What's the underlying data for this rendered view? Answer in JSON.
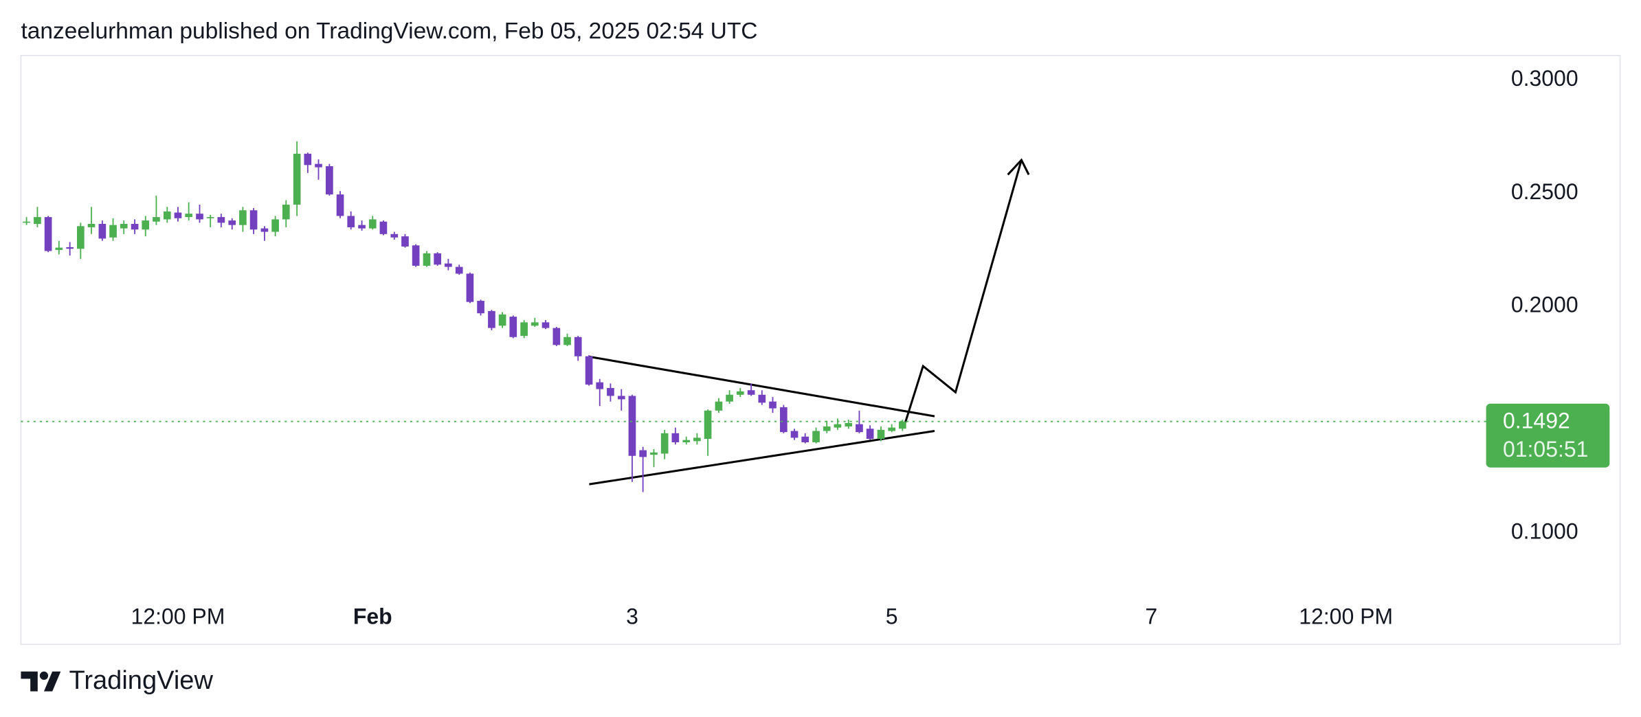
{
  "chart_data": {
    "type": "candlestick",
    "header": "tanzeelurhman published on TradingView.com, Feb 05, 2025 02:54 UTC",
    "brand": "TradingView",
    "up_color": "#4caf50",
    "down_color": "#7340c0",
    "x": [
      -1.667,
      -1.583,
      -1.5,
      -1.417,
      -1.333,
      -1.25,
      -1.167,
      -1.083,
      -1,
      -0.917,
      -0.833,
      -0.75,
      -0.667,
      -0.583,
      -0.5,
      -0.417,
      -0.333,
      -0.25,
      -0.167,
      -0.083,
      0,
      0.083,
      0.167,
      0.25,
      0.333,
      0.417,
      0.5,
      0.583,
      0.667,
      0.75,
      0.833,
      0.917,
      1,
      1.083,
      1.167,
      1.25,
      1.333,
      1.417,
      1.5,
      1.583,
      1.667,
      1.75,
      1.833,
      1.917,
      2,
      2.083,
      2.167,
      2.25,
      2.333,
      2.417,
      2.5,
      2.583,
      2.667,
      2.75,
      2.833,
      2.917,
      3,
      3.083,
      3.167,
      3.25,
      3.333,
      3.417,
      3.5,
      3.583,
      3.667,
      3.75,
      3.833,
      3.917,
      4,
      4.083,
      4.167,
      4.25,
      4.333,
      4.417,
      4.5,
      4.583,
      4.667,
      4.75,
      4.833,
      4.917,
      5,
      5.083
    ],
    "open": [
      0.237,
      0.2365,
      0.2395,
      0.225,
      0.2262,
      0.2255,
      0.235,
      0.2365,
      0.2305,
      0.2345,
      0.2365,
      0.234,
      0.2375,
      0.2385,
      0.2415,
      0.2395,
      0.241,
      0.239,
      0.2395,
      0.238,
      0.236,
      0.2425,
      0.2345,
      0.233,
      0.2385,
      0.245,
      0.2675,
      0.263,
      0.262,
      0.2495,
      0.24,
      0.236,
      0.2345,
      0.2375,
      0.232,
      0.231,
      0.227,
      0.218,
      0.2235,
      0.219,
      0.2175,
      0.2145,
      0.2025,
      0.198,
      0.1915,
      0.1955,
      0.187,
      0.1915,
      0.193,
      0.1905,
      0.183,
      0.1865,
      0.178,
      0.1665,
      0.164,
      0.1605,
      0.1605,
      0.1365,
      0.1345,
      0.135,
      0.144,
      0.14,
      0.1405,
      0.1415,
      0.154,
      0.158,
      0.161,
      0.163,
      0.161,
      0.158,
      0.1555,
      0.145,
      0.1425,
      0.14,
      0.145,
      0.1465,
      0.147,
      0.148,
      0.146,
      0.1415,
      0.145,
      0.146
    ],
    "high": [
      0.2395,
      0.244,
      0.24,
      0.229,
      0.2285,
      0.237,
      0.244,
      0.238,
      0.239,
      0.238,
      0.2385,
      0.24,
      0.249,
      0.244,
      0.244,
      0.246,
      0.245,
      0.2405,
      0.241,
      0.239,
      0.244,
      0.2435,
      0.2355,
      0.24,
      0.247,
      0.273,
      0.268,
      0.265,
      0.263,
      0.251,
      0.242,
      0.238,
      0.24,
      0.238,
      0.233,
      0.232,
      0.2275,
      0.2245,
      0.224,
      0.221,
      0.2185,
      0.215,
      0.203,
      0.1985,
      0.1975,
      0.196,
      0.194,
      0.195,
      0.194,
      0.191,
      0.188,
      0.187,
      0.1785,
      0.168,
      0.166,
      0.1635,
      0.161,
      0.138,
      0.137,
      0.1455,
      0.1465,
      0.1425,
      0.144,
      0.1545,
      0.1595,
      0.163,
      0.164,
      0.166,
      0.163,
      0.16,
      0.1565,
      0.146,
      0.144,
      0.1465,
      0.1495,
      0.1505,
      0.15,
      0.154,
      0.1475,
      0.147,
      0.148,
      0.15
    ],
    "low": [
      0.236,
      0.235,
      0.224,
      0.223,
      0.2225,
      0.221,
      0.232,
      0.229,
      0.229,
      0.232,
      0.232,
      0.231,
      0.236,
      0.237,
      0.2375,
      0.238,
      0.237,
      0.235,
      0.235,
      0.234,
      0.233,
      0.232,
      0.229,
      0.231,
      0.235,
      0.24,
      0.259,
      0.256,
      0.249,
      0.239,
      0.234,
      0.2335,
      0.234,
      0.2315,
      0.2295,
      0.226,
      0.2175,
      0.2175,
      0.218,
      0.216,
      0.214,
      0.2015,
      0.196,
      0.1895,
      0.1905,
      0.186,
      0.186,
      0.191,
      0.19,
      0.1825,
      0.1825,
      0.176,
      0.165,
      0.156,
      0.158,
      0.154,
      0.1225,
      0.118,
      0.129,
      0.1325,
      0.139,
      0.139,
      0.139,
      0.134,
      0.153,
      0.157,
      0.16,
      0.1605,
      0.1565,
      0.153,
      0.144,
      0.141,
      0.1395,
      0.1395,
      0.144,
      0.1455,
      0.146,
      0.144,
      0.141,
      0.1405,
      0.1445,
      0.145
    ],
    "close": [
      0.2375,
      0.2395,
      0.2245,
      0.226,
      0.2255,
      0.2355,
      0.2365,
      0.23,
      0.236,
      0.2365,
      0.234,
      0.238,
      0.2395,
      0.242,
      0.239,
      0.241,
      0.2385,
      0.2395,
      0.237,
      0.236,
      0.2425,
      0.234,
      0.233,
      0.2385,
      0.245,
      0.2675,
      0.2625,
      0.2615,
      0.2495,
      0.24,
      0.235,
      0.2345,
      0.2385,
      0.232,
      0.2305,
      0.2265,
      0.218,
      0.2235,
      0.2185,
      0.2175,
      0.2145,
      0.202,
      0.197,
      0.1905,
      0.1965,
      0.1865,
      0.193,
      0.193,
      0.1905,
      0.183,
      0.1865,
      0.178,
      0.1655,
      0.1635,
      0.1605,
      0.159,
      0.134,
      0.1335,
      0.1355,
      0.144,
      0.14,
      0.141,
      0.142,
      0.154,
      0.158,
      0.161,
      0.1625,
      0.161,
      0.1575,
      0.155,
      0.1445,
      0.142,
      0.14,
      0.145,
      0.147,
      0.148,
      0.1485,
      0.1445,
      0.1415,
      0.1455,
      0.1465,
      0.1492
    ],
    "last_price": 0.1492,
    "countdown": "01:05:51",
    "xlim": [
      -1.71,
      9.58
    ],
    "xticks": [
      {
        "value": -0.5,
        "label": "12:00 PM"
      },
      {
        "value": 1,
        "label": "Feb",
        "bold": true
      },
      3,
      5,
      7,
      {
        "value": 8.5,
        "label": "12:00 PM"
      }
    ],
    "ylim": [
      0.072,
      0.31
    ],
    "yticks": [
      {
        "value": 0.1,
        "label": "0.1000"
      },
      {
        "value": 0.2,
        "label": "0.2000"
      },
      {
        "value": 0.25,
        "label": "0.2500"
      },
      {
        "value": 0.3,
        "label": "0.3000"
      }
    ]
  }
}
